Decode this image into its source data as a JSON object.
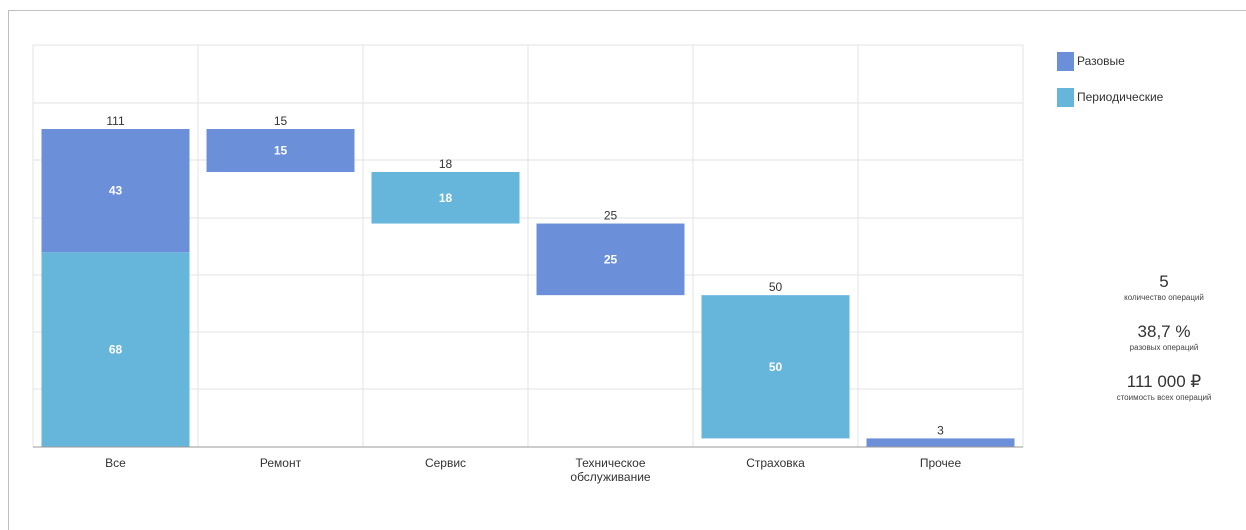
{
  "chart_data": {
    "type": "bar",
    "categories": [
      "Все",
      "Ремонт",
      "Сервис",
      "Техническое обслуживание",
      "Страховка",
      "Прочее"
    ],
    "category_lines": [
      [
        "Все"
      ],
      [
        "Ремонт"
      ],
      [
        "Сервис"
      ],
      [
        "Техническое",
        "обслуживание"
      ],
      [
        "Страховка"
      ],
      [
        "Прочее"
      ]
    ],
    "series": [
      {
        "name": "Разовые",
        "color": "#6b8fd9"
      },
      {
        "name": "Периодические",
        "color": "#66b5db"
      }
    ],
    "segments": [
      {
        "category": 0,
        "series": 1,
        "base": 0,
        "value": 68,
        "label": "68"
      },
      {
        "category": 0,
        "series": 0,
        "base": 68,
        "value": 43,
        "label": "43"
      },
      {
        "category": 1,
        "series": 0,
        "base": 96,
        "value": 15,
        "label": "15"
      },
      {
        "category": 2,
        "series": 1,
        "base": 78,
        "value": 18,
        "label": "18"
      },
      {
        "category": 3,
        "series": 0,
        "base": 53,
        "value": 25,
        "label": "25"
      },
      {
        "category": 4,
        "series": 1,
        "base": 3,
        "value": 50,
        "label": "50"
      },
      {
        "category": 5,
        "series": 0,
        "base": 0,
        "value": 3,
        "label": ""
      }
    ],
    "totals": [
      "111",
      "15",
      "18",
      "25",
      "50",
      "3"
    ],
    "ylim": [
      0,
      130
    ],
    "grid": true,
    "legend_position": "right",
    "title": "",
    "xlabel": "",
    "ylabel": ""
  },
  "legend": {
    "items": [
      {
        "label": "Разовые",
        "color": "#6b8fd9"
      },
      {
        "label": "Периодические",
        "color": "#66b5db"
      }
    ]
  },
  "stats": {
    "operations_count": {
      "value": "5",
      "label": "количество операций"
    },
    "one_time_share": {
      "value": "38,7 %",
      "label": "разовых операций"
    },
    "total_cost": {
      "value": "111 000 ₽",
      "label": "стоимость всех операций"
    }
  }
}
